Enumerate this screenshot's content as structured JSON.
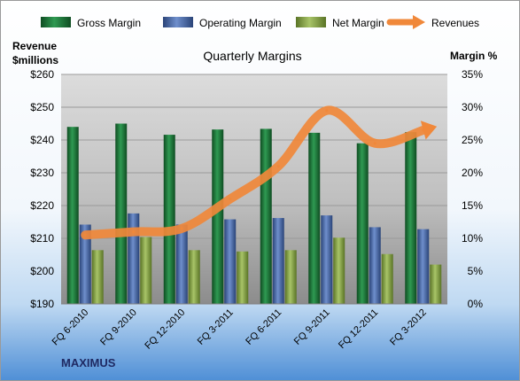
{
  "chart_data": {
    "type": "bar",
    "title": "Quarterly Margins",
    "y_left_label_line1": "Revenue",
    "y_left_label_line2": "$millions",
    "y_right_label": "Margin %",
    "categories": [
      "FQ 6-2010",
      "FQ 9-2010",
      "FQ 12-2010",
      "FQ 3-2011",
      "FQ 6-2011",
      "FQ 9-2011",
      "FQ 12-2011",
      "FQ 3-2012"
    ],
    "y_left_range": [
      190,
      260
    ],
    "y_left_ticks": [
      "$190",
      "$200",
      "$210",
      "$220",
      "$230",
      "$240",
      "$250",
      "$260"
    ],
    "y_right_range": [
      0,
      35
    ],
    "y_right_ticks": [
      "0%",
      "5%",
      "10%",
      "15%",
      "20%",
      "25%",
      "30%",
      "35%"
    ],
    "grid": true,
    "legend_position": "top",
    "series": [
      {
        "name": "Gross Margin",
        "type": "bar",
        "axis": "right",
        "color": "#1e7a3a",
        "values": [
          27.0,
          27.5,
          25.8,
          26.6,
          26.7,
          26.1,
          24.5,
          26.2
        ]
      },
      {
        "name": "Operating Margin",
        "type": "bar",
        "axis": "right",
        "color": "#4a6aa8",
        "values": [
          12.1,
          13.8,
          12.1,
          12.9,
          13.1,
          13.5,
          11.7,
          11.4
        ]
      },
      {
        "name": "Net Margin",
        "type": "bar",
        "axis": "right",
        "color": "#8aa84a",
        "values": [
          8.2,
          10.2,
          8.2,
          8.0,
          8.2,
          10.1,
          7.6,
          6.0
        ]
      },
      {
        "name": "Revenues",
        "type": "line",
        "axis": "left",
        "color": "#f0883a",
        "values": [
          211,
          212,
          213,
          222,
          232,
          249,
          239,
          243
        ]
      }
    ]
  },
  "brand": "MAXIMUS"
}
